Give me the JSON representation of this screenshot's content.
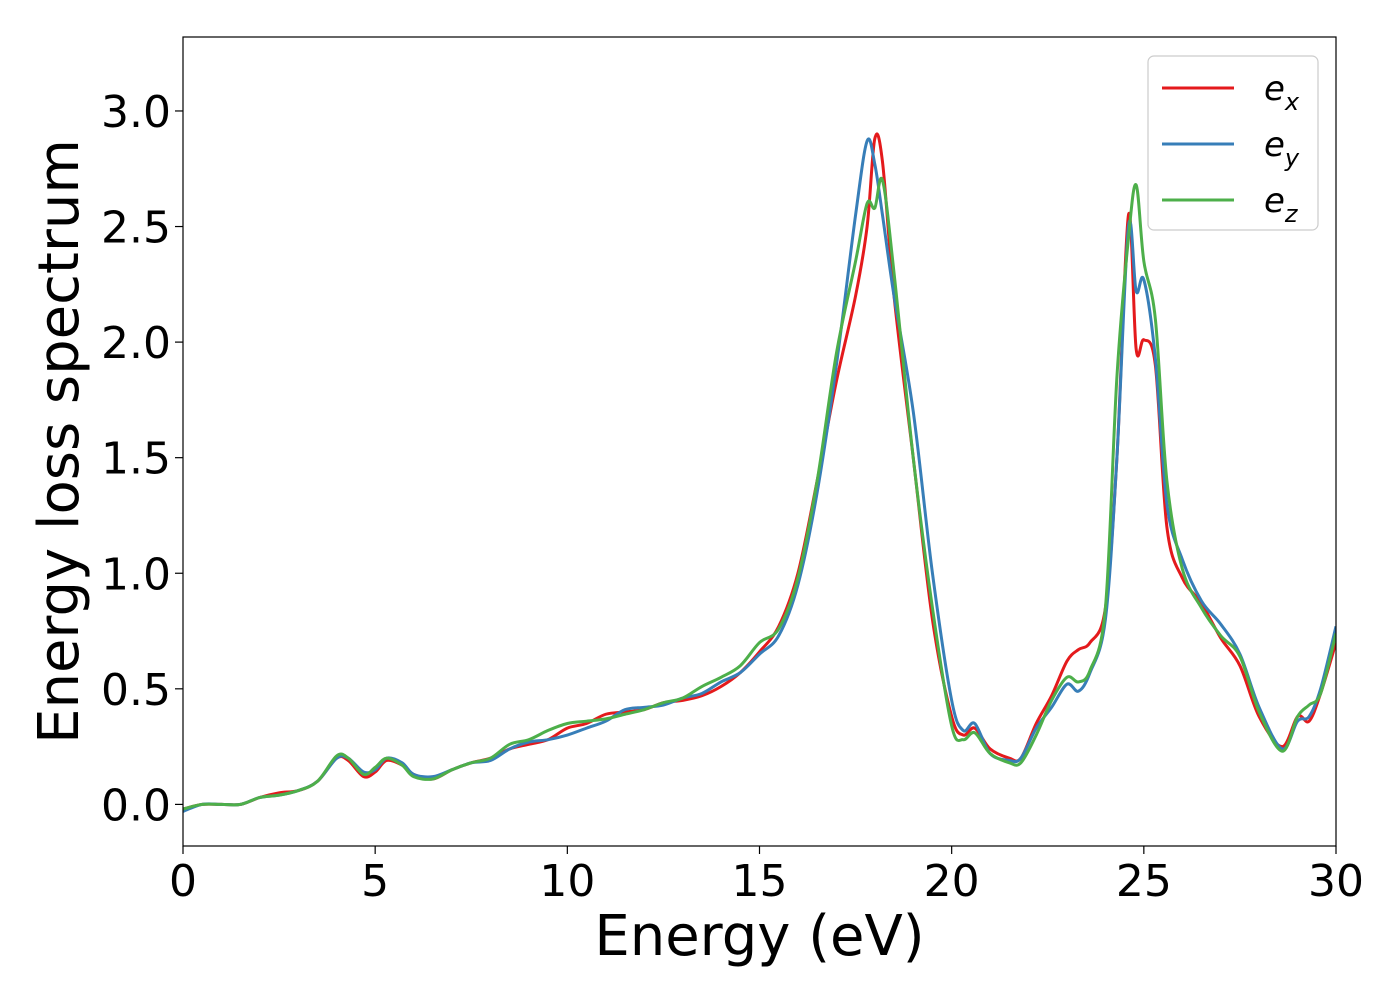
{
  "chart_data": {
    "type": "line",
    "title": "",
    "xlabel": "Energy (eV)",
    "ylabel": "Energy loss spectrum",
    "xlim": [
      0,
      30
    ],
    "ylim": [
      -0.18,
      3.32
    ],
    "xticks": [
      0,
      5,
      10,
      15,
      20,
      25,
      30
    ],
    "xtick_labels": [
      "0",
      "5",
      "10",
      "15",
      "20",
      "25",
      "30"
    ],
    "yticks": [
      0.0,
      0.5,
      1.0,
      1.5,
      2.0,
      2.5,
      3.0
    ],
    "ytick_labels": [
      "0.0",
      "0.5",
      "1.0",
      "1.5",
      "2.0",
      "2.5",
      "3.0"
    ],
    "grid": false,
    "legend": {
      "position": "top-right",
      "entries": [
        {
          "base": "e",
          "sub": "x",
          "color": "#e41a1c"
        },
        {
          "base": "e",
          "sub": "y",
          "color": "#377eb8"
        },
        {
          "base": "e",
          "sub": "z",
          "color": "#4daf4a"
        }
      ]
    },
    "series": [
      {
        "name": "e_x",
        "color": "#e41a1c",
        "x": [
          0,
          0.5,
          1,
          1.5,
          2,
          2.5,
          3,
          3.5,
          4,
          4.3,
          4.7,
          5,
          5.3,
          5.7,
          6,
          6.5,
          7,
          7.5,
          8,
          8.5,
          9,
          9.5,
          10,
          10.5,
          11,
          11.5,
          12,
          12.5,
          13,
          13.5,
          14,
          14.5,
          15,
          15.5,
          16,
          16.5,
          17,
          17.5,
          17.8,
          18,
          18.2,
          18.5,
          19,
          19.5,
          20,
          20.3,
          20.6,
          21,
          21.5,
          21.8,
          22.2,
          22.6,
          23,
          23.3,
          23.6,
          24,
          24.3,
          24.6,
          24.8,
          25,
          25.3,
          25.6,
          26,
          26.5,
          27,
          27.5,
          28,
          28.6,
          29,
          29.3,
          29.6,
          30
        ],
        "y": [
          -0.02,
          0.0,
          0.0,
          0.0,
          0.03,
          0.05,
          0.06,
          0.1,
          0.2,
          0.19,
          0.12,
          0.14,
          0.19,
          0.17,
          0.13,
          0.11,
          0.15,
          0.18,
          0.2,
          0.24,
          0.26,
          0.28,
          0.33,
          0.35,
          0.39,
          0.4,
          0.41,
          0.44,
          0.45,
          0.47,
          0.51,
          0.57,
          0.66,
          0.77,
          1.0,
          1.4,
          1.83,
          2.2,
          2.5,
          2.88,
          2.78,
          2.2,
          1.5,
          0.8,
          0.38,
          0.3,
          0.33,
          0.24,
          0.2,
          0.2,
          0.35,
          0.47,
          0.62,
          0.67,
          0.7,
          0.85,
          1.5,
          2.55,
          1.97,
          2.01,
          1.9,
          1.2,
          0.98,
          0.87,
          0.72,
          0.6,
          0.38,
          0.25,
          0.38,
          0.36,
          0.48,
          0.7
        ]
      },
      {
        "name": "e_y",
        "color": "#377eb8",
        "x": [
          0,
          0.5,
          1,
          1.5,
          2,
          2.5,
          3,
          3.5,
          4,
          4.3,
          4.7,
          5,
          5.3,
          5.7,
          6,
          6.5,
          7,
          7.5,
          8,
          8.5,
          9,
          9.5,
          10,
          10.5,
          11,
          11.5,
          12,
          12.5,
          13,
          13.5,
          14,
          14.5,
          15,
          15.5,
          16,
          16.5,
          17,
          17.5,
          17.8,
          18,
          18.2,
          18.5,
          19,
          19.5,
          20,
          20.3,
          20.6,
          21,
          21.5,
          21.8,
          22.2,
          22.6,
          23,
          23.3,
          23.6,
          24,
          24.3,
          24.6,
          24.8,
          25,
          25.3,
          25.6,
          26,
          26.5,
          27,
          27.5,
          28,
          28.6,
          29,
          29.3,
          29.6,
          30
        ],
        "y": [
          -0.03,
          0.0,
          0.0,
          0.0,
          0.03,
          0.04,
          0.06,
          0.1,
          0.2,
          0.2,
          0.14,
          0.15,
          0.2,
          0.18,
          0.13,
          0.12,
          0.15,
          0.18,
          0.19,
          0.24,
          0.27,
          0.28,
          0.3,
          0.33,
          0.36,
          0.41,
          0.42,
          0.43,
          0.46,
          0.48,
          0.53,
          0.57,
          0.65,
          0.73,
          0.95,
          1.35,
          1.9,
          2.55,
          2.87,
          2.77,
          2.55,
          2.2,
          1.7,
          1.0,
          0.45,
          0.32,
          0.35,
          0.22,
          0.19,
          0.2,
          0.33,
          0.42,
          0.52,
          0.49,
          0.57,
          0.8,
          1.5,
          2.5,
          2.22,
          2.27,
          1.93,
          1.3,
          1.06,
          0.88,
          0.78,
          0.65,
          0.42,
          0.24,
          0.36,
          0.38,
          0.5,
          0.77
        ]
      },
      {
        "name": "e_z",
        "color": "#4daf4a",
        "x": [
          0,
          0.5,
          1,
          1.5,
          2,
          2.5,
          3,
          3.5,
          4,
          4.3,
          4.7,
          5,
          5.3,
          5.7,
          6,
          6.5,
          7,
          7.5,
          8,
          8.5,
          9,
          9.5,
          10,
          10.5,
          11,
          11.5,
          12,
          12.5,
          13,
          13.5,
          14,
          14.5,
          15,
          15.5,
          16,
          16.5,
          17,
          17.5,
          17.8,
          18,
          18.2,
          18.5,
          19,
          19.5,
          20,
          20.3,
          20.6,
          21,
          21.5,
          21.8,
          22.2,
          22.6,
          23,
          23.3,
          23.6,
          24,
          24.3,
          24.6,
          24.8,
          25,
          25.3,
          25.6,
          26,
          26.5,
          27,
          27.5,
          28,
          28.6,
          29,
          29.3,
          29.6,
          30
        ],
        "y": [
          -0.02,
          0.0,
          0.0,
          0.0,
          0.03,
          0.04,
          0.06,
          0.1,
          0.21,
          0.2,
          0.13,
          0.16,
          0.2,
          0.17,
          0.12,
          0.11,
          0.15,
          0.18,
          0.2,
          0.26,
          0.28,
          0.32,
          0.35,
          0.36,
          0.37,
          0.39,
          0.41,
          0.44,
          0.46,
          0.51,
          0.55,
          0.6,
          0.7,
          0.76,
          0.98,
          1.4,
          1.95,
          2.35,
          2.6,
          2.58,
          2.7,
          2.3,
          1.5,
          0.85,
          0.34,
          0.28,
          0.31,
          0.22,
          0.18,
          0.18,
          0.3,
          0.45,
          0.55,
          0.53,
          0.58,
          0.85,
          1.85,
          2.45,
          2.68,
          2.35,
          2.1,
          1.4,
          1.02,
          0.85,
          0.73,
          0.64,
          0.4,
          0.23,
          0.38,
          0.43,
          0.48,
          0.74
        ]
      }
    ]
  }
}
